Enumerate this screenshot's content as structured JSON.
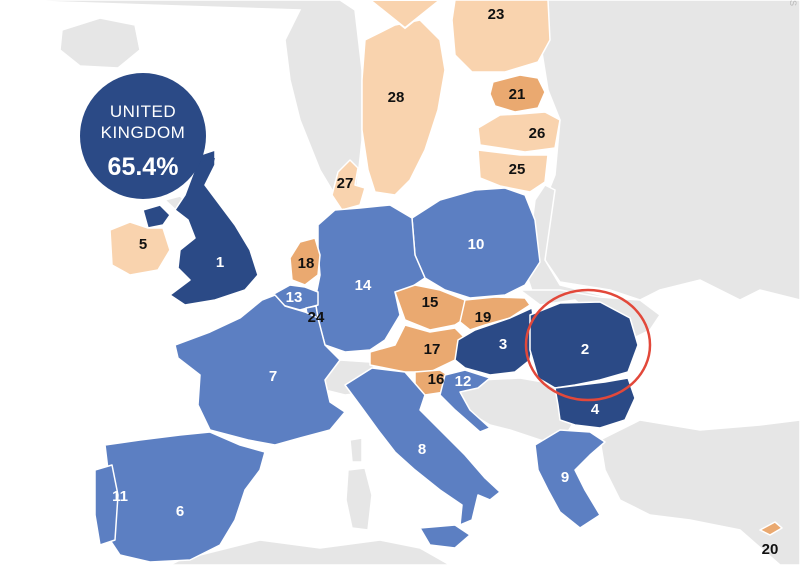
{
  "colors": {
    "sea": "#ffffff",
    "land_other": "#e6e6e6",
    "border": "#ffffff",
    "high": "#2b4a86",
    "mid": "#5c7fc2",
    "low": "#eaa970",
    "lowest": "#f9d3ae",
    "highlight_circle": "#e2483a"
  },
  "callout": {
    "line1": "UNITED",
    "line2": "KINGDOM",
    "value": "65.4%",
    "fill": "#2b4a86"
  },
  "corner_text": "S",
  "countries": [
    {
      "id": "uk",
      "rank": "1",
      "tier": "high",
      "label_color": "#ffffff"
    },
    {
      "id": "ireland",
      "rank": "5",
      "tier": "lowest",
      "label_color": "#111111"
    },
    {
      "id": "romania",
      "rank": "2",
      "tier": "high",
      "label_color": "#ffffff",
      "highlighted": true
    },
    {
      "id": "hungary",
      "rank": "3",
      "tier": "high",
      "label_color": "#ffffff"
    },
    {
      "id": "bulgaria",
      "rank": "4",
      "tier": "high",
      "label_color": "#ffffff"
    },
    {
      "id": "spain",
      "rank": "6",
      "tier": "mid",
      "label_color": "#ffffff"
    },
    {
      "id": "france",
      "rank": "7",
      "tier": "mid",
      "label_color": "#ffffff"
    },
    {
      "id": "italy",
      "rank": "8",
      "tier": "mid",
      "label_color": "#ffffff"
    },
    {
      "id": "greece",
      "rank": "9",
      "tier": "mid",
      "label_color": "#ffffff"
    },
    {
      "id": "poland",
      "rank": "10",
      "tier": "mid",
      "label_color": "#ffffff"
    },
    {
      "id": "portugal",
      "rank": "11",
      "tier": "mid",
      "label_color": "#ffffff"
    },
    {
      "id": "croatia",
      "rank": "12",
      "tier": "mid",
      "label_color": "#ffffff"
    },
    {
      "id": "belgium",
      "rank": "13",
      "tier": "mid",
      "label_color": "#ffffff"
    },
    {
      "id": "germany",
      "rank": "14",
      "tier": "mid",
      "label_color": "#ffffff"
    },
    {
      "id": "czechia",
      "rank": "15",
      "tier": "low",
      "label_color": "#111111"
    },
    {
      "id": "slovenia",
      "rank": "16",
      "tier": "low",
      "label_color": "#111111"
    },
    {
      "id": "austria",
      "rank": "17",
      "tier": "low",
      "label_color": "#111111"
    },
    {
      "id": "netherlands",
      "rank": "18",
      "tier": "low",
      "label_color": "#111111"
    },
    {
      "id": "slovakia",
      "rank": "19",
      "tier": "low",
      "label_color": "#111111"
    },
    {
      "id": "cyprus",
      "rank": "20",
      "tier": "low",
      "label_color": "#111111"
    },
    {
      "id": "estonia",
      "rank": "21",
      "tier": "low",
      "label_color": "#111111"
    },
    {
      "id": "finland",
      "rank": "23",
      "tier": "lowest",
      "label_color": "#111111"
    },
    {
      "id": "luxembourg",
      "rank": "24",
      "tier": "mid",
      "label_color": "#111111"
    },
    {
      "id": "lithuania",
      "rank": "25",
      "tier": "lowest",
      "label_color": "#111111"
    },
    {
      "id": "latvia",
      "rank": "26",
      "tier": "lowest",
      "label_color": "#111111"
    },
    {
      "id": "denmark",
      "rank": "27",
      "tier": "lowest",
      "label_color": "#111111"
    },
    {
      "id": "sweden",
      "rank": "28",
      "tier": "lowest",
      "label_color": "#111111"
    }
  ]
}
